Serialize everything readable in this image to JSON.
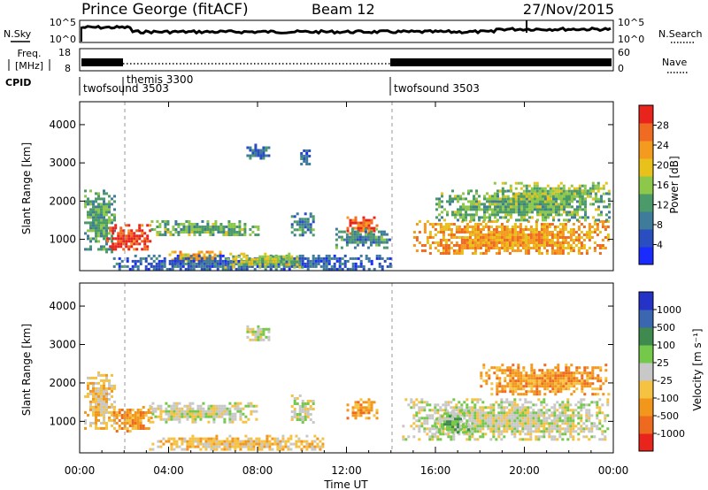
{
  "header": {
    "title": "Prince George (fitACF)",
    "beam": "Beam 12",
    "date": "27/Nov/2015"
  },
  "strips": {
    "nsky_label": "N.Sky",
    "nsearch_label": "N.Search",
    "counts_ticks": [
      "10^5",
      "10^0"
    ],
    "freq_label_1": "Freq.",
    "freq_label_2": "[MHz]",
    "freq_ticks": [
      "18",
      "8"
    ],
    "nave_label": "Nave",
    "nave_ticks": [
      "60",
      "0"
    ],
    "cpid_label": "CPID",
    "cpid_segments": [
      {
        "label": "twofsound 3503",
        "start": 0.0,
        "end": 1.7
      },
      {
        "label": "themis 3300",
        "start": 1.7,
        "end": 14.0
      },
      {
        "label": "twofsound 3503",
        "start": 14.0,
        "end": 24.0
      }
    ]
  },
  "chart_data": [
    {
      "type": "heatmap",
      "panel": "power",
      "ylabel": "Slant Range [km]",
      "xlim": [
        0,
        24
      ],
      "ylim": [
        180,
        4600
      ],
      "yticks": [
        "1000",
        "2000",
        "3000",
        "4000"
      ],
      "colorbar_label": "Power [dB]",
      "colorbar_ticks": [
        "4",
        "8",
        "12",
        "16",
        "20",
        "24",
        "28"
      ],
      "colorbar_range": [
        0,
        32
      ],
      "colors": [
        "#1a2bff",
        "#2a4ec0",
        "#3f7b9a",
        "#4a9a6a",
        "#8ec84a",
        "#e8c21a",
        "#f39a1f",
        "#f06a22",
        "#e8241c"
      ],
      "regions": [
        {
          "t": [
            0.2,
            1.6
          ],
          "r": [
            700,
            2300
          ],
          "v": 13
        },
        {
          "t": [
            1.2,
            3.2
          ],
          "r": [
            750,
            1400
          ],
          "v": 29
        },
        {
          "t": [
            3.2,
            8.0
          ],
          "r": [
            1100,
            1500
          ],
          "v": 14
        },
        {
          "t": [
            4.0,
            6.5
          ],
          "r": [
            350,
            700
          ],
          "v": 22
        },
        {
          "t": [
            1.5,
            14.0
          ],
          "r": [
            200,
            600
          ],
          "v": 7
        },
        {
          "t": [
            6.5,
            10.0
          ],
          "r": [
            300,
            650
          ],
          "v": 17
        },
        {
          "t": [
            7.5,
            8.5
          ],
          "r": [
            3100,
            3500
          ],
          "v": 8
        },
        {
          "t": [
            9.8,
            10.3
          ],
          "r": [
            2950,
            3350
          ],
          "v": 7
        },
        {
          "t": [
            9.5,
            10.5
          ],
          "r": [
            1100,
            1700
          ],
          "v": 10
        },
        {
          "t": [
            12.0,
            13.4
          ],
          "r": [
            1150,
            1600
          ],
          "v": 27
        },
        {
          "t": [
            11.5,
            14.0
          ],
          "r": [
            800,
            1300
          ],
          "v": 11
        },
        {
          "t": [
            15.0,
            23.8
          ],
          "r": [
            600,
            1500
          ],
          "v": 23
        },
        {
          "t": [
            16.0,
            23.8
          ],
          "r": [
            1500,
            2300
          ],
          "v": 14
        },
        {
          "t": [
            18.5,
            23.8
          ],
          "r": [
            2000,
            2500
          ],
          "v": 16
        }
      ]
    },
    {
      "type": "heatmap",
      "panel": "velocity",
      "ylabel": "Slant Range [km]",
      "xlabel": "Time UT",
      "xlim": [
        0,
        24
      ],
      "ylim": [
        180,
        4600
      ],
      "xticks": [
        "00:00",
        "04:00",
        "08:00",
        "12:00",
        "16:00",
        "20:00",
        "00:00"
      ],
      "yticks": [
        "1000",
        "2000",
        "3000",
        "4000"
      ],
      "colorbar_label": "Velocity [m s⁻¹]",
      "colorbar_ticks": [
        "1000",
        "500",
        "100",
        "25",
        "-25",
        "-100",
        "-500",
        "-1000"
      ],
      "colors": [
        "#2432c8",
        "#3a67b0",
        "#3f8a4e",
        "#74c84a",
        "#c8c8c8",
        "#f5c242",
        "#f3961c",
        "#ee6a1e",
        "#e8241c"
      ],
      "regions": [
        {
          "t": [
            0.2,
            1.6
          ],
          "r": [
            800,
            2300
          ],
          "level": 5
        },
        {
          "t": [
            1.5,
            3.2
          ],
          "r": [
            750,
            1400
          ],
          "level": 6
        },
        {
          "t": [
            3.0,
            8.0
          ],
          "r": [
            1000,
            1500
          ],
          "level": 4
        },
        {
          "t": [
            3.0,
            11.0
          ],
          "r": [
            250,
            650
          ],
          "level": 5
        },
        {
          "t": [
            7.5,
            8.5
          ],
          "r": [
            3100,
            3500
          ],
          "level": 4
        },
        {
          "t": [
            9.5,
            10.5
          ],
          "r": [
            1000,
            1700
          ],
          "level": 4
        },
        {
          "t": [
            12.0,
            13.4
          ],
          "r": [
            1100,
            1600
          ],
          "level": 6
        },
        {
          "t": [
            14.5,
            23.8
          ],
          "r": [
            500,
            1600
          ],
          "level": 4
        },
        {
          "t": [
            16.0,
            17.5
          ],
          "r": [
            700,
            1300
          ],
          "level": 3
        },
        {
          "t": [
            18.0,
            23.8
          ],
          "r": [
            1700,
            2500
          ],
          "level": 6
        }
      ]
    }
  ]
}
